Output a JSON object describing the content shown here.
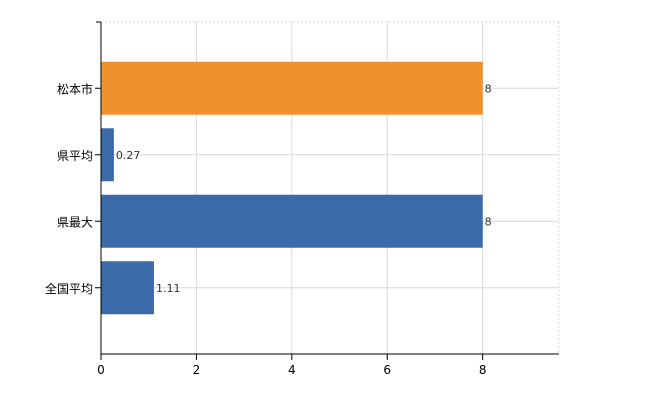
{
  "chart_data": {
    "type": "bar",
    "orientation": "horizontal",
    "title": "",
    "xlabel": "",
    "ylabel": "",
    "categories": [
      "松本市",
      "県平均",
      "県最大",
      "全国平均"
    ],
    "values": [
      8,
      0.27,
      8,
      1.11
    ],
    "value_labels": [
      "8",
      "0.27",
      "8",
      "1.11"
    ],
    "bar_colors": [
      "#f0912f",
      "#3a6ba8",
      "#3a6ba8",
      "#3a6ba8"
    ],
    "xlim": [
      0,
      9.6
    ],
    "x_ticks": [
      0,
      2,
      4,
      6,
      8
    ],
    "x_tick_labels": [
      "0",
      "2",
      "4",
      "6",
      "8"
    ],
    "grid": true,
    "legend": "none"
  }
}
